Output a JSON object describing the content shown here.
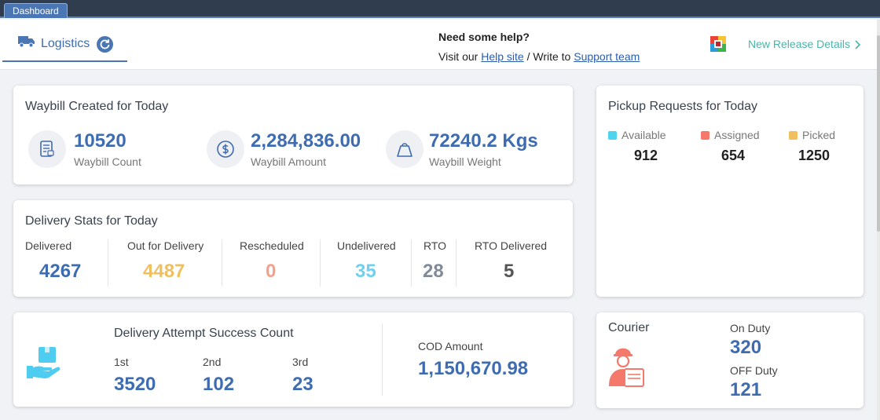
{
  "window": {
    "tab": "Dashboard"
  },
  "header": {
    "module_label": "Logistics",
    "help_title": "Need some help?",
    "help_prefix": "Visit our",
    "help_site": "Help site",
    "help_mid": "/ Write to",
    "support_team": "Support team",
    "release_link": "New Release Details"
  },
  "waybill": {
    "title": "Waybill Created for Today",
    "metrics": [
      {
        "value": "10520",
        "label": "Waybill Count",
        "icon": "receipt-icon"
      },
      {
        "value": "2,284,836.00",
        "label": "Waybill Amount",
        "icon": "dollar-icon"
      },
      {
        "value": "72240.2 Kgs",
        "label": "Waybill Weight",
        "icon": "weight-icon"
      }
    ]
  },
  "delivery": {
    "title": "Delivery Stats for Today",
    "stats": [
      {
        "label": "Delivered",
        "value": "4267",
        "color": "#3f6cb0"
      },
      {
        "label": "Out for Delivery",
        "value": "4487",
        "color": "#f0c060"
      },
      {
        "label": "Rescheduled",
        "value": "0",
        "color": "#f4a08e"
      },
      {
        "label": "Undelivered",
        "value": "35",
        "color": "#6fd0f0"
      },
      {
        "label": "RTO",
        "value": "28",
        "color": "#808a98"
      },
      {
        "label": "RTO Delivered",
        "value": "5",
        "color": "#555555"
      }
    ]
  },
  "pickup": {
    "title": "Pickup Requests for Today",
    "items": [
      {
        "label": "Available",
        "value": "912",
        "color": "#4fd4f0"
      },
      {
        "label": "Assigned",
        "value": "654",
        "color": "#f4796a"
      },
      {
        "label": "Picked",
        "value": "1250",
        "color": "#f0c060"
      }
    ]
  },
  "attempts": {
    "title": "Delivery Attempt Success Count",
    "items": [
      {
        "label": "1st",
        "value": "3520"
      },
      {
        "label": "2nd",
        "value": "102"
      },
      {
        "label": "3rd",
        "value": "23"
      }
    ],
    "cod_label": "COD Amount",
    "cod_value": "1,150,670.98"
  },
  "courier": {
    "title": "Courier",
    "on_duty_label": "On Duty",
    "on_duty_value": "320",
    "off_duty_label": "OFF Duty",
    "off_duty_value": "121"
  }
}
